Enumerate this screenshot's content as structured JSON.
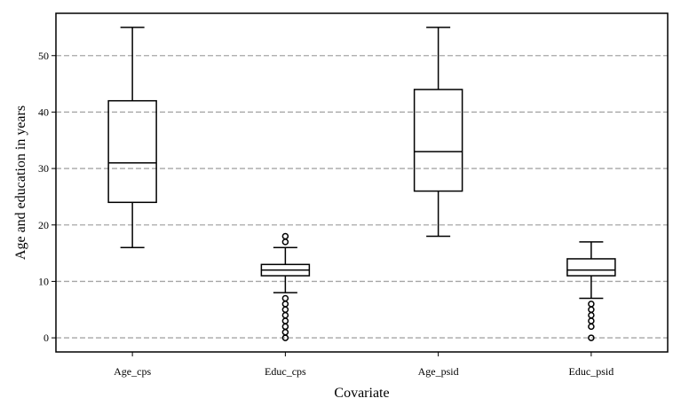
{
  "chart_data": {
    "type": "box",
    "title": "",
    "xlabel": "Covariate",
    "ylabel": "Age and education in years",
    "ylim": [
      -2.5,
      57.5
    ],
    "yticks": [
      0,
      10,
      20,
      30,
      40,
      50
    ],
    "grid": "horizontal-dashed",
    "categories": [
      "Age_cps",
      "Educ_cps",
      "Age_psid",
      "Educ_psid"
    ],
    "boxes": [
      {
        "category": "Age_cps",
        "whisker_low": 16,
        "q1": 24,
        "median": 31,
        "q3": 42,
        "whisker_high": 55,
        "outliers": []
      },
      {
        "category": "Educ_cps",
        "whisker_low": 8,
        "q1": 11,
        "median": 12,
        "q3": 13,
        "whisker_high": 16,
        "outliers": [
          0,
          1,
          2,
          3,
          4,
          5,
          6,
          7,
          17,
          18
        ]
      },
      {
        "category": "Age_psid",
        "whisker_low": 18,
        "q1": 26,
        "median": 33,
        "q3": 44,
        "whisker_high": 55,
        "outliers": []
      },
      {
        "category": "Educ_psid",
        "whisker_low": 7,
        "q1": 11,
        "median": 12,
        "q3": 14,
        "whisker_high": 17,
        "outliers": [
          0,
          2,
          3,
          4,
          5,
          6
        ]
      }
    ]
  }
}
